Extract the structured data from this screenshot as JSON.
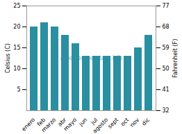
{
  "chart_data": {
    "type": "bar",
    "categories": [
      "enero",
      "feb",
      "marzo",
      "abr",
      "mayo",
      "jun",
      "jul",
      "agosto",
      "sept",
      "oct",
      "nov",
      "dic"
    ],
    "values": [
      20,
      21,
      20,
      18,
      16,
      13,
      13,
      13,
      13,
      13,
      15,
      18
    ],
    "color": "#2a8fa0",
    "ylim": [
      0,
      25
    ],
    "yticks": [
      5,
      10,
      15,
      20,
      25
    ],
    "ylabel": "Celsius (C)",
    "y2lim": [
      32,
      77
    ],
    "y2ticks": [
      32,
      41,
      50,
      59,
      68,
      77
    ],
    "y2label": "Fahrenheit (F)",
    "annotations": [
      {
        "text": "@seatemperature.info",
        "color": "#2a8fa0"
      }
    ],
    "grid": false
  }
}
